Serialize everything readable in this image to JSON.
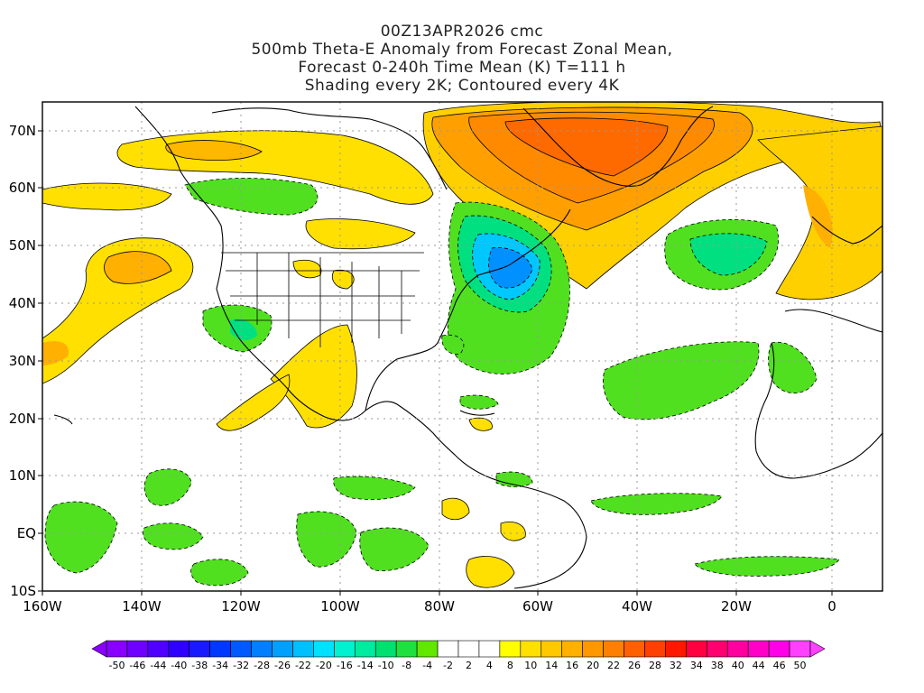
{
  "titles": {
    "line1": "00Z13APR2026 cmc",
    "line2": "500mb Theta-E Anomaly from Forecast Zonal Mean,",
    "line3": "Forecast 0-240h Time Mean (K) T=111 h",
    "line4": "Shading every 2K; Contoured every 4K"
  },
  "axes": {
    "lon_labels": [
      "160W",
      "140W",
      "120W",
      "100W",
      "80W",
      "60W",
      "40W",
      "20W",
      "0"
    ],
    "lat_labels": [
      "70N",
      "60N",
      "50N",
      "40N",
      "30N",
      "20N",
      "10N",
      "EQ",
      "10S"
    ]
  },
  "colorbar": {
    "labels": [
      "-50",
      "-46",
      "-44",
      "-40",
      "-38",
      "-34",
      "-32",
      "-28",
      "-26",
      "-22",
      "-20",
      "-16",
      "-14",
      "-10",
      "-8",
      "-4",
      "-2",
      "2",
      "4",
      "8",
      "10",
      "14",
      "16",
      "20",
      "22",
      "26",
      "28",
      "32",
      "34",
      "38",
      "40",
      "44",
      "46",
      "50"
    ],
    "colors": [
      "#8a00ff",
      "#6e00ff",
      "#5000ff",
      "#3000ff",
      "#1a1aff",
      "#0038ff",
      "#005aff",
      "#0080ff",
      "#00a0ff",
      "#00c0ff",
      "#00e0ff",
      "#00f0d0",
      "#00eaa0",
      "#00e070",
      "#20e040",
      "#60e800",
      "#ffffff",
      "#ffffff",
      "#ffffff",
      "#ffff00",
      "#ffe000",
      "#ffc800",
      "#ffb000",
      "#ff9800",
      "#ff8000",
      "#ff6000",
      "#ff4000",
      "#ff1800",
      "#ff0040",
      "#ff0070",
      "#ff00a0",
      "#ff00c8",
      "#ff00e8",
      "#ff40ff"
    ]
  }
}
